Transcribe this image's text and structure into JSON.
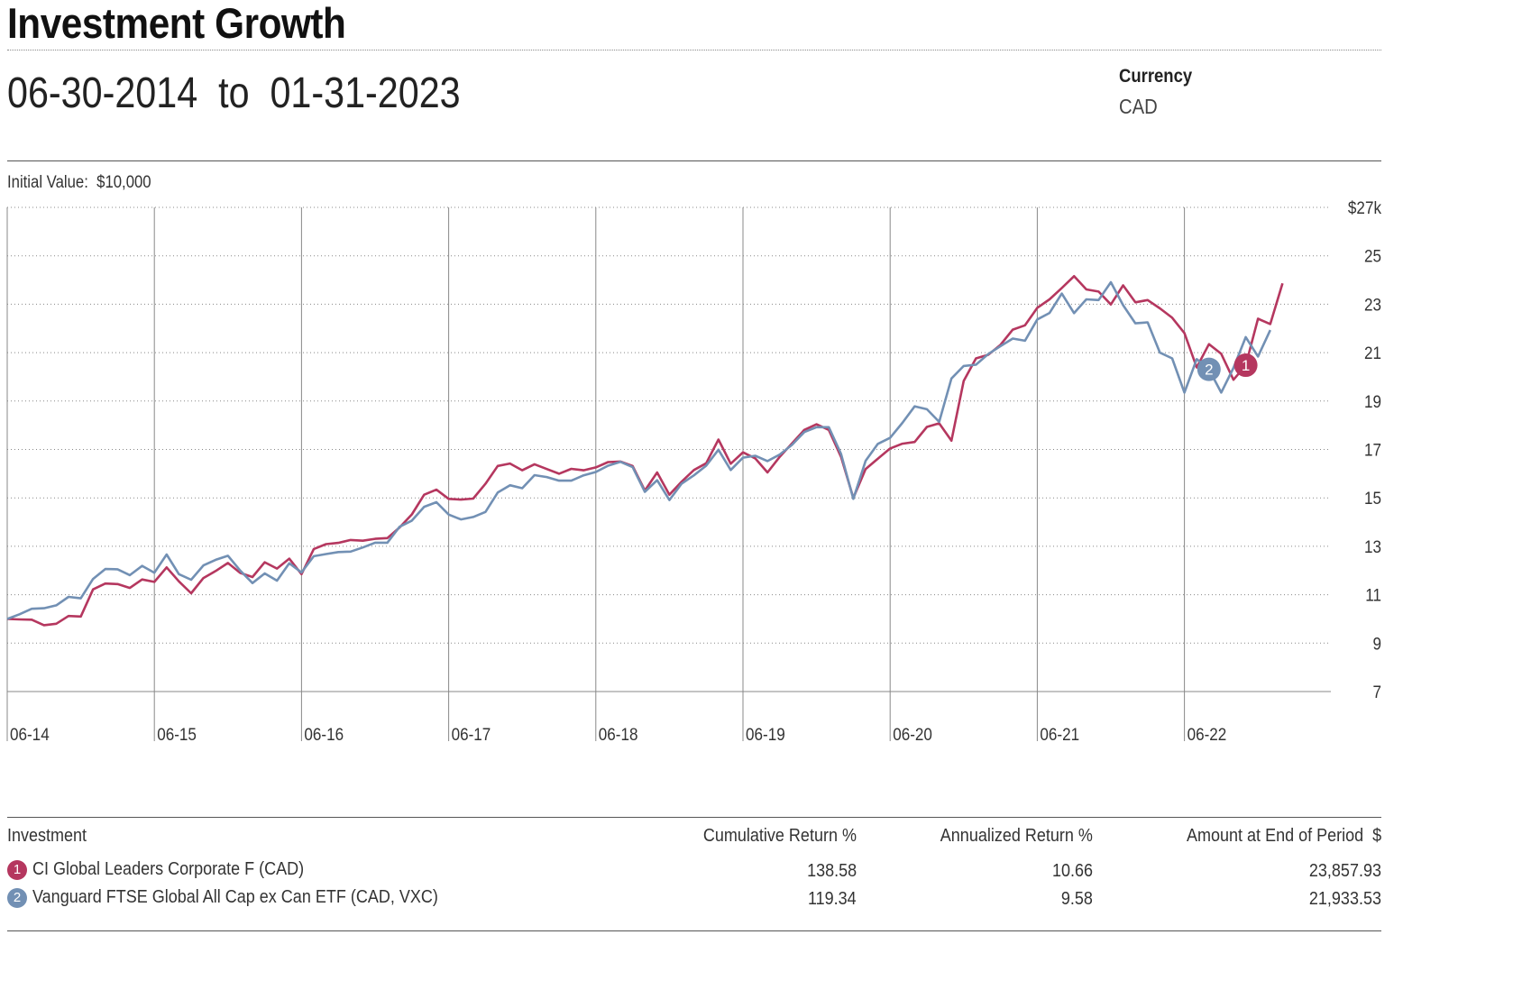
{
  "header": {
    "title": "Investment Growth",
    "start_date": "06-30-2014",
    "to_word": "to",
    "end_date": "01-31-2023",
    "currency_label": "Currency",
    "currency_value": "CAD",
    "initial_value_label": "Initial Value:",
    "initial_value": "$10,000"
  },
  "colors": {
    "series1": "#b5375f",
    "series2": "#7290b4"
  },
  "chart_data": {
    "type": "line",
    "ylim": [
      7,
      27
    ],
    "y_ticks": [
      7,
      9,
      11,
      13,
      15,
      17,
      19,
      21,
      23,
      25,
      27
    ],
    "y_tick_labels": [
      "7",
      "9",
      "11",
      "13",
      "15",
      "17",
      "19",
      "21",
      "23",
      "25",
      "$27k"
    ],
    "x_tick_labels": [
      "06-14",
      "06-15",
      "06-16",
      "06-17",
      "06-18",
      "06-19",
      "06-20",
      "06-21",
      "06-22"
    ],
    "grid": true,
    "series": [
      {
        "name": "CI Global Leaders Corporate F (CAD)",
        "marker": "1",
        "values": [
          10.0,
          9.98,
          9.97,
          9.74,
          9.8,
          10.12,
          10.1,
          11.22,
          11.46,
          11.44,
          11.28,
          11.63,
          11.53,
          12.13,
          11.55,
          11.06,
          11.69,
          11.98,
          12.31,
          11.9,
          11.73,
          12.34,
          12.08,
          12.49,
          11.85,
          12.89,
          13.09,
          13.14,
          13.26,
          13.23,
          13.31,
          13.34,
          13.78,
          14.32,
          15.13,
          15.34,
          14.96,
          14.93,
          14.97,
          15.58,
          16.32,
          16.42,
          16.14,
          16.39,
          16.19,
          16.0,
          16.2,
          16.14,
          16.26,
          16.48,
          16.5,
          16.32,
          15.3,
          16.05,
          15.13,
          15.67,
          16.15,
          16.43,
          17.41,
          16.41,
          16.88,
          16.63,
          16.05,
          16.7,
          17.25,
          17.81,
          18.04,
          17.81,
          16.69,
          15.0,
          16.19,
          16.62,
          17.04,
          17.24,
          17.31,
          17.93,
          18.08,
          17.36,
          19.83,
          20.76,
          20.91,
          21.32,
          21.95,
          22.13,
          22.85,
          23.2,
          23.67,
          24.16,
          23.61,
          23.52,
          22.99,
          23.78,
          23.08,
          23.17,
          22.83,
          22.44,
          21.81,
          20.39,
          21.35,
          20.95,
          19.88,
          20.48,
          22.4,
          22.18,
          23.86
        ]
      },
      {
        "name": "Vanguard FTSE Global All Cap ex Can ETF (CAD, VXC)",
        "marker": "2",
        "values": [
          10.0,
          10.19,
          10.42,
          10.44,
          10.56,
          10.91,
          10.85,
          11.65,
          12.06,
          12.05,
          11.81,
          12.19,
          11.91,
          12.66,
          11.85,
          11.62,
          12.21,
          12.44,
          12.61,
          12.0,
          11.48,
          11.88,
          11.58,
          12.3,
          11.92,
          12.59,
          12.68,
          12.76,
          12.78,
          12.95,
          13.15,
          13.15,
          13.81,
          14.06,
          14.63,
          14.82,
          14.31,
          14.11,
          14.21,
          14.42,
          15.22,
          15.52,
          15.4,
          15.94,
          15.86,
          15.71,
          15.71,
          15.93,
          16.07,
          16.33,
          16.49,
          16.27,
          15.25,
          15.73,
          14.91,
          15.59,
          15.93,
          16.33,
          16.99,
          16.15,
          16.66,
          16.74,
          16.52,
          16.79,
          17.19,
          17.72,
          17.92,
          17.92,
          16.81,
          14.96,
          16.53,
          17.23,
          17.48,
          18.1,
          18.78,
          18.66,
          18.14,
          19.93,
          20.45,
          20.5,
          20.94,
          21.27,
          21.58,
          21.49,
          22.37,
          22.64,
          23.44,
          22.63,
          23.2,
          23.17,
          23.91,
          22.96,
          22.21,
          22.25,
          21.0,
          20.76,
          19.35,
          20.73,
          20.31,
          19.35,
          20.37,
          21.64,
          20.84,
          21.93
        ]
      }
    ]
  },
  "table": {
    "headers": [
      "Investment",
      "Cumulative Return %",
      "Annualized Return %",
      "Amount at End of Period  $"
    ],
    "rows": [
      {
        "marker": "1",
        "name": "CI Global Leaders Corporate F (CAD)",
        "cumulative": "138.58",
        "annualized": "10.66",
        "amount": "23,857.93"
      },
      {
        "marker": "2",
        "name": "Vanguard FTSE Global All Cap ex Can ETF (CAD, VXC)",
        "cumulative": "119.34",
        "annualized": "9.58",
        "amount": "21,933.53"
      }
    ]
  }
}
